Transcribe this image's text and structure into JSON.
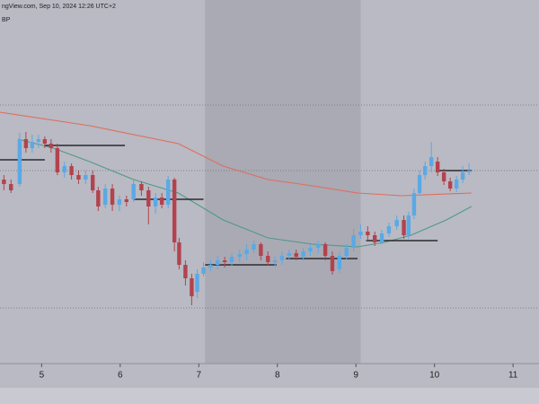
{
  "header": {
    "source": "ngView.com, Sep 10, 2024 12:26 UTC+2",
    "symbol": "BP"
  },
  "chart_data": {
    "type": "candlestick",
    "xlim": [
      4.47,
      11.33
    ],
    "xticks": [
      5,
      6,
      7,
      8,
      9,
      10,
      11
    ],
    "ylim": [
      0,
      400
    ],
    "up_color": "#5aa9e6",
    "down_color": "#b2434e",
    "x": [
      4.52,
      4.61,
      4.72,
      4.8,
      4.88,
      4.96,
      5.04,
      5.12,
      5.2,
      5.29,
      5.38,
      5.47,
      5.56,
      5.65,
      5.72,
      5.81,
      5.9,
      5.99,
      6.08,
      6.17,
      6.27,
      6.36,
      6.45,
      6.53,
      6.61,
      6.69,
      6.75,
      6.83,
      6.91,
      6.98,
      7.06,
      7.15,
      7.24,
      7.33,
      7.42,
      7.52,
      7.61,
      7.7,
      7.79,
      7.88,
      7.97,
      8.06,
      8.15,
      8.24,
      8.33,
      8.42,
      8.52,
      8.61,
      8.7,
      8.79,
      8.88,
      8.97,
      9.06,
      9.15,
      9.24,
      9.33,
      9.42,
      9.52,
      9.61,
      9.67,
      9.74,
      9.81,
      9.88,
      9.96,
      10.04,
      10.12,
      10.2,
      10.28,
      10.36,
      10.44
    ],
    "open": [
      200,
      195,
      195,
      245,
      235,
      242,
      245,
      240,
      235,
      208,
      215,
      205,
      200,
      205,
      188,
      172,
      190,
      172,
      178,
      178,
      195,
      188,
      170,
      180,
      172,
      200,
      130,
      105,
      90,
      75,
      95,
      102,
      105,
      110,
      108,
      114,
      117,
      122,
      128,
      115,
      108,
      110,
      115,
      118,
      114,
      120,
      124,
      128,
      115,
      100,
      115,
      124,
      138,
      142,
      138,
      130,
      140,
      148,
      155,
      138,
      160,
      185,
      205,
      215,
      220,
      208,
      198,
      190,
      200,
      208
    ],
    "close": [
      195,
      188,
      245,
      235,
      242,
      245,
      240,
      235,
      208,
      215,
      205,
      200,
      205,
      188,
      170,
      190,
      172,
      178,
      175,
      195,
      188,
      170,
      180,
      172,
      200,
      130,
      105,
      90,
      70,
      95,
      102,
      105,
      110,
      108,
      114,
      117,
      122,
      128,
      115,
      108,
      110,
      115,
      118,
      114,
      120,
      124,
      128,
      115,
      98,
      115,
      124,
      138,
      142,
      138,
      130,
      140,
      148,
      155,
      138,
      160,
      185,
      205,
      215,
      225,
      208,
      198,
      190,
      200,
      208,
      210
    ],
    "high": [
      205,
      200,
      252,
      253,
      250,
      250,
      248,
      245,
      240,
      220,
      218,
      210,
      210,
      210,
      192,
      195,
      195,
      182,
      182,
      200,
      198,
      192,
      185,
      185,
      204,
      202,
      135,
      110,
      95,
      100,
      108,
      110,
      115,
      114,
      118,
      122,
      128,
      132,
      130,
      120,
      114,
      120,
      122,
      122,
      124,
      128,
      132,
      130,
      120,
      120,
      128,
      145,
      150,
      148,
      142,
      144,
      152,
      160,
      160,
      164,
      190,
      210,
      220,
      242,
      225,
      212,
      202,
      204,
      215,
      218
    ],
    "low": [
      188,
      185,
      192,
      230,
      230,
      235,
      235,
      230,
      205,
      202,
      200,
      195,
      195,
      185,
      165,
      168,
      165,
      165,
      170,
      175,
      182,
      150,
      162,
      168,
      168,
      120,
      100,
      82,
      60,
      68,
      92,
      98,
      100,
      102,
      104,
      108,
      110,
      118,
      110,
      104,
      102,
      105,
      110,
      110,
      110,
      115,
      118,
      110,
      94,
      96,
      110,
      120,
      134,
      132,
      126,
      128,
      136,
      144,
      134,
      134,
      156,
      182,
      200,
      208,
      204,
      194,
      187,
      186,
      196,
      205
    ],
    "series": [
      {
        "color": "#e06c5e",
        "x": [
          4.47,
          5.61,
          6.74,
          7.31,
          7.88,
          8.45,
          9.02,
          9.58,
          10.47
        ],
        "values": [
          275,
          260,
          240,
          215,
          200,
          193,
          185,
          182,
          185
        ]
      },
      {
        "color": "#4f9a86",
        "x": [
          4.7,
          5.15,
          5.61,
          6.17,
          6.74,
          7.31,
          7.88,
          8.45,
          9.02,
          9.36,
          9.7,
          10.15,
          10.47
        ],
        "values": [
          245,
          235,
          220,
          200,
          185,
          155,
          135,
          128,
          125,
          130,
          138,
          155,
          170
        ]
      }
    ],
    "levels": [
      {
        "x": [
          4.47,
          5.04
        ],
        "value": 222
      },
      {
        "x": [
          5.04,
          6.06
        ],
        "value": 238
      },
      {
        "x": [
          6.17,
          7.06
        ],
        "value": 178
      },
      {
        "x": [
          7.08,
          7.99
        ],
        "value": 105
      },
      {
        "x": [
          8.11,
          9.02
        ],
        "value": 112
      },
      {
        "x": [
          9.13,
          10.04
        ],
        "value": 132
      },
      {
        "x": [
          10.04,
          10.47
        ],
        "value": 210
      }
    ],
    "hlines": [
      283,
      210,
      57
    ],
    "highlight": [
      7.08,
      9.06
    ]
  }
}
